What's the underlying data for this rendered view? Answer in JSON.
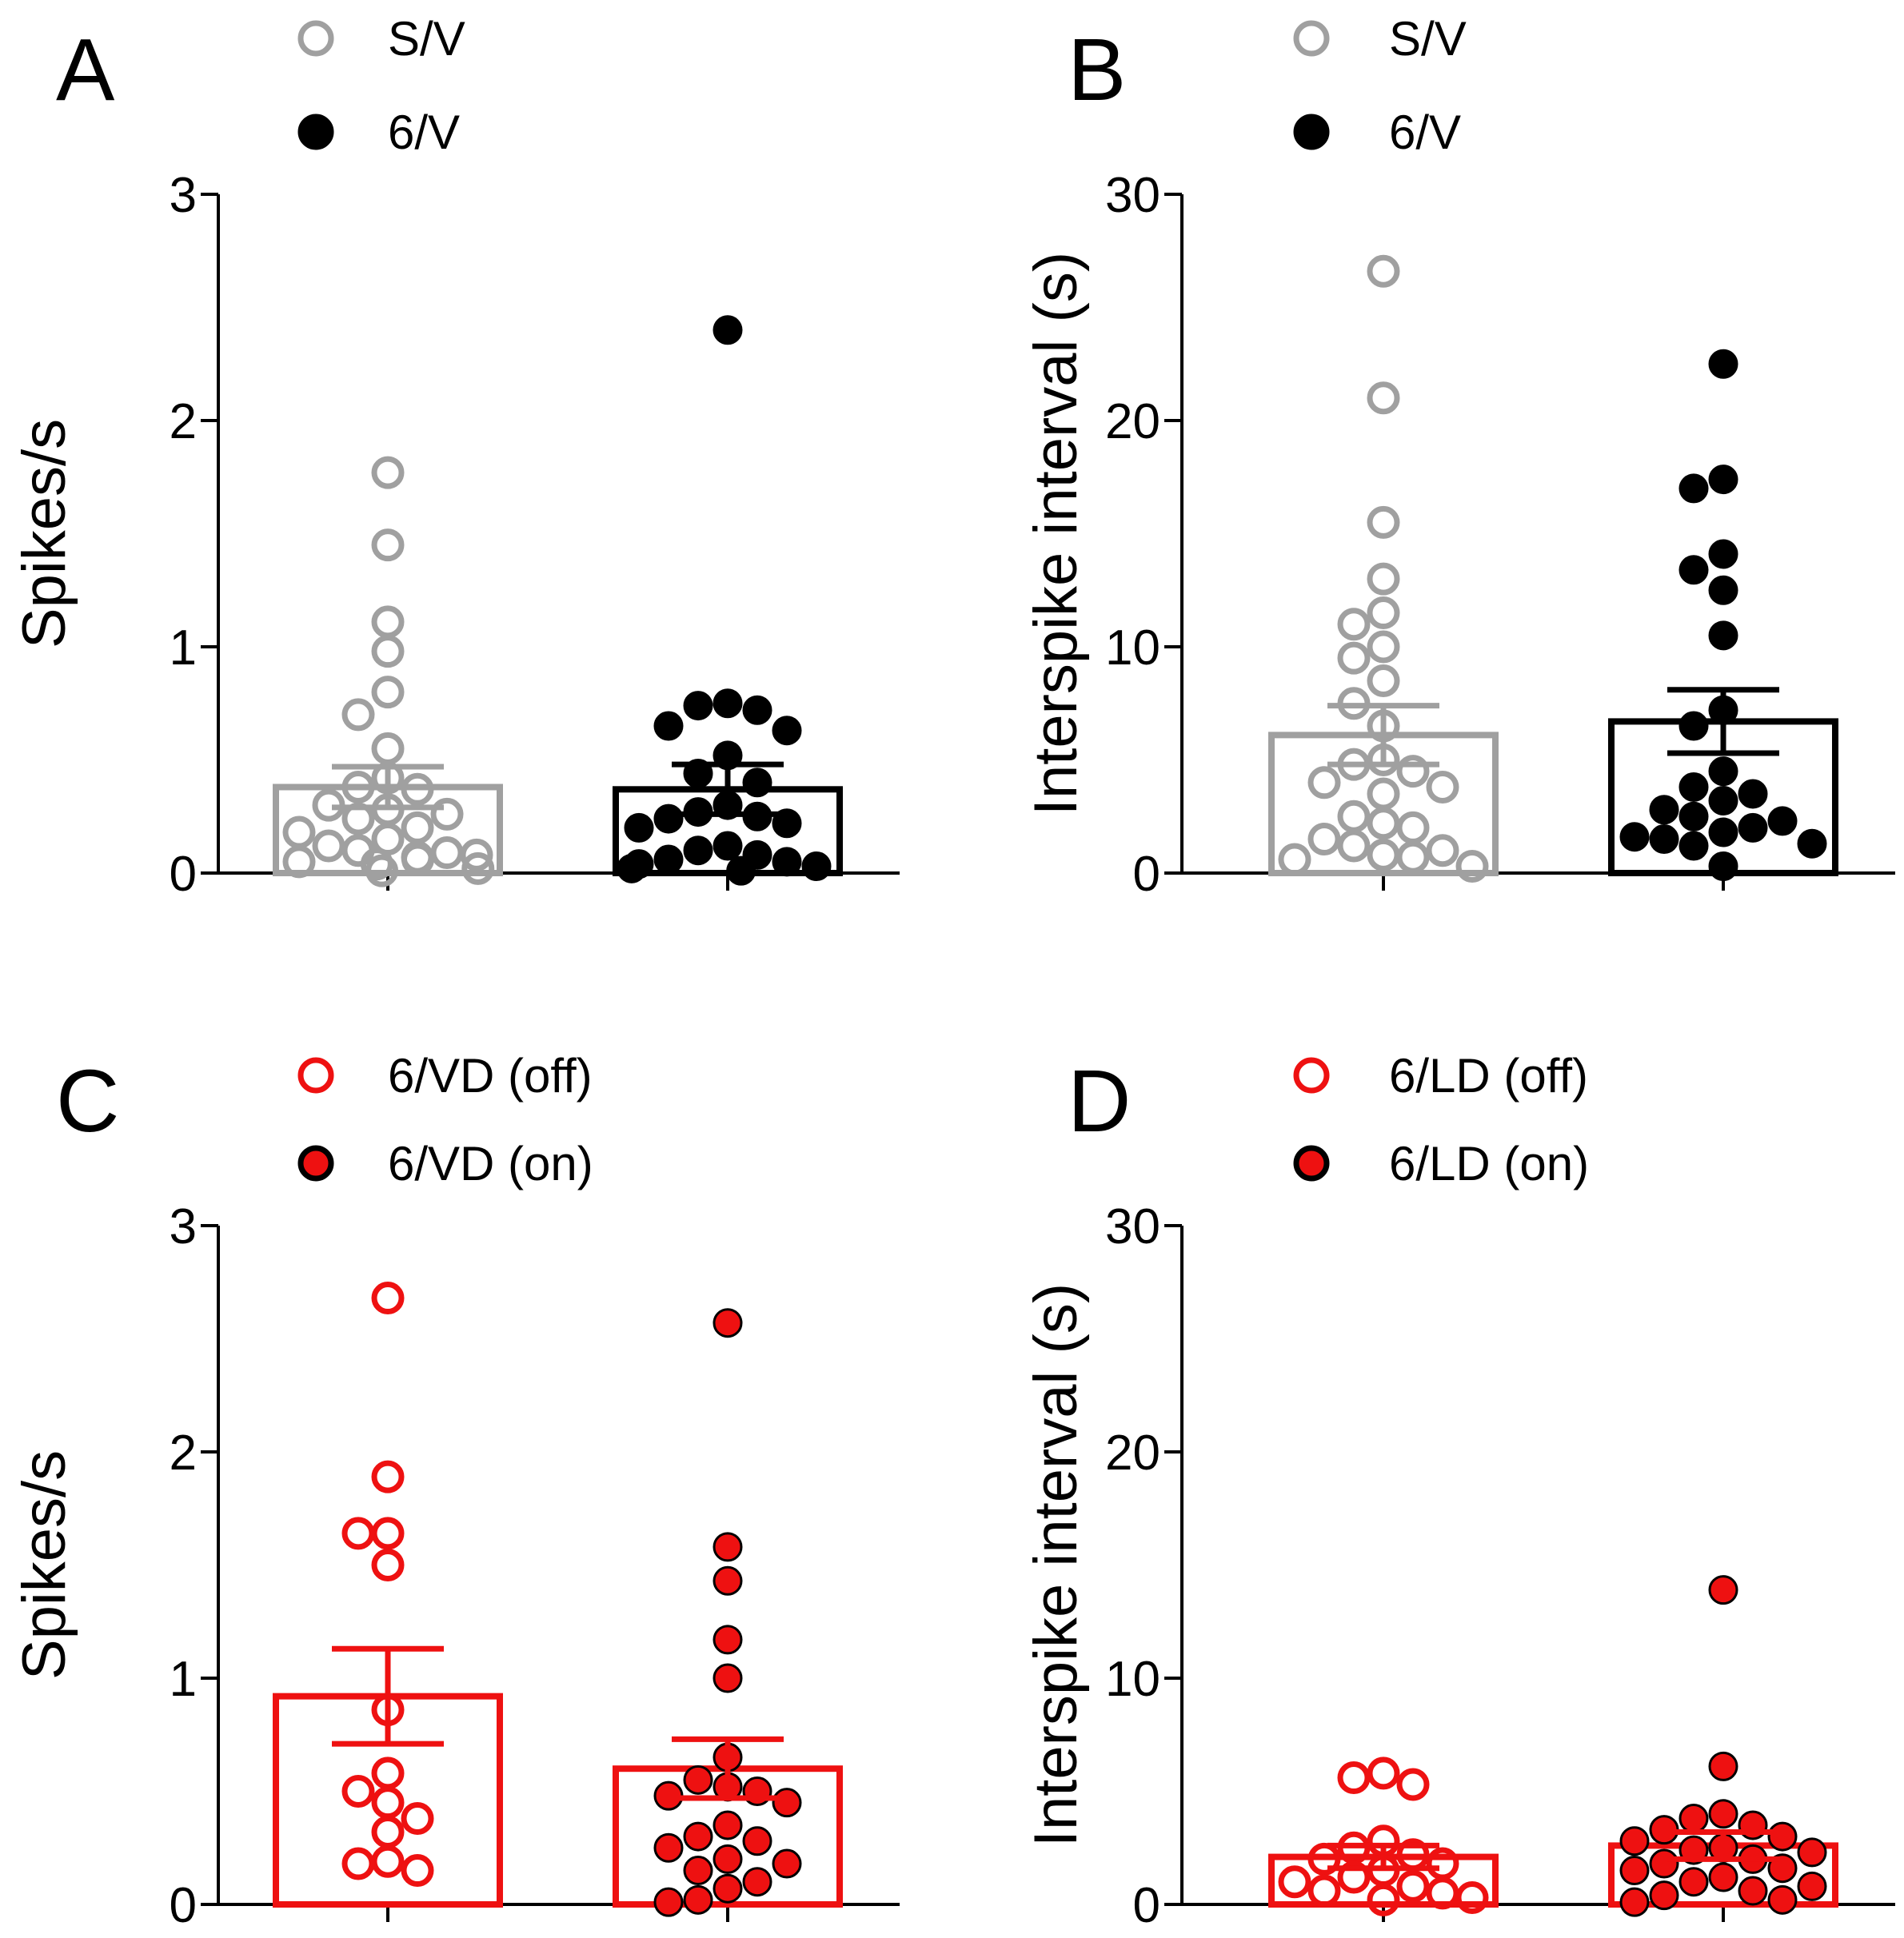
{
  "chart_data": [
    {
      "panel": "A",
      "type": "bar",
      "ylabel": "Spikes/s",
      "ylim": [
        0,
        3
      ],
      "yticks": [
        0,
        1,
        2,
        3
      ],
      "ytick_labels": [
        "0",
        "1",
        "2",
        "3"
      ],
      "legend": [
        {
          "label": "S/V",
          "marker": "open-circle",
          "color": "#a0a0a0"
        },
        {
          "label": "6/V",
          "marker": "filled-circle",
          "color": "#000000"
        }
      ],
      "series": [
        {
          "name": "S/V",
          "color": "#a0a0a0",
          "fill": "none",
          "mean": 0.38,
          "sem": 0.09,
          "points": [
            1.77,
            1.45,
            1.11,
            0.98,
            0.8,
            0.7,
            0.55,
            0.42,
            0.38,
            0.37,
            0.3,
            0.28,
            0.26,
            0.24,
            0.2,
            0.18,
            0.15,
            0.12,
            0.1,
            0.09,
            0.08,
            0.07,
            0.06,
            0.05,
            0.04,
            0.02,
            0.01
          ]
        },
        {
          "name": "6/V",
          "color": "#000000",
          "fill": "#000000",
          "mean": 0.37,
          "sem": 0.11,
          "points": [
            2.4,
            0.75,
            0.74,
            0.72,
            0.65,
            0.63,
            0.52,
            0.44,
            0.4,
            0.3,
            0.27,
            0.25,
            0.24,
            0.22,
            0.2,
            0.12,
            0.1,
            0.08,
            0.06,
            0.05,
            0.04,
            0.03,
            0.02,
            0.01
          ]
        }
      ]
    },
    {
      "panel": "B",
      "type": "bar",
      "ylabel": "Interspike interval (s)",
      "ylim": [
        0,
        30
      ],
      "yticks": [
        0,
        10,
        20,
        30
      ],
      "ytick_labels": [
        "0",
        "10",
        "20",
        "30"
      ],
      "legend": [
        {
          "label": "S/V",
          "marker": "open-circle",
          "color": "#a0a0a0"
        },
        {
          "label": "6/V",
          "marker": "filled-circle",
          "color": "#000000"
        }
      ],
      "series": [
        {
          "name": "S/V",
          "color": "#a0a0a0",
          "fill": "none",
          "mean": 6.1,
          "sem": 1.3,
          "points": [
            26.6,
            21.0,
            15.5,
            13.0,
            11.5,
            11.0,
            10.0,
            9.5,
            8.5,
            7.5,
            6.5,
            5.0,
            4.8,
            4.5,
            4.0,
            3.8,
            3.5,
            2.5,
            2.2,
            2.0,
            1.5,
            1.2,
            1.0,
            0.8,
            0.7,
            0.6,
            0.3
          ]
        },
        {
          "name": "6/V",
          "color": "#000000",
          "fill": "#000000",
          "mean": 6.7,
          "sem": 1.4,
          "points": [
            22.5,
            17.4,
            17.0,
            14.1,
            13.4,
            12.5,
            10.5,
            7.2,
            6.5,
            4.5,
            3.8,
            3.5,
            3.2,
            2.8,
            2.5,
            2.3,
            2.0,
            1.8,
            1.6,
            1.5,
            1.3,
            1.2,
            0.3
          ]
        }
      ]
    },
    {
      "panel": "C",
      "type": "bar",
      "ylabel": "Spikes/s",
      "ylim": [
        0,
        3
      ],
      "yticks": [
        0,
        1,
        2,
        3
      ],
      "ytick_labels": [
        "0",
        "1",
        "2",
        "3"
      ],
      "legend": [
        {
          "label": "6/VD (off)",
          "marker": "open-circle",
          "color": "#ee1111"
        },
        {
          "label": "6/VD (on)",
          "marker": "filled-circle",
          "color": "#ee1111"
        }
      ],
      "series": [
        {
          "name": "6/VD (off)",
          "color": "#ee1111",
          "fill": "none",
          "mean": 0.92,
          "sem": 0.21,
          "points": [
            2.68,
            1.89,
            1.64,
            1.64,
            1.5,
            0.86,
            0.58,
            0.5,
            0.45,
            0.38,
            0.32,
            0.19,
            0.18,
            0.15
          ]
        },
        {
          "name": "6/VD (on)",
          "color": "#ee1111",
          "fill": "#ee1111",
          "mean": 0.6,
          "sem": 0.13,
          "points": [
            2.57,
            1.58,
            1.43,
            1.17,
            1.0,
            0.65,
            0.55,
            0.52,
            0.5,
            0.48,
            0.45,
            0.35,
            0.3,
            0.28,
            0.25,
            0.2,
            0.18,
            0.15,
            0.1,
            0.07,
            0.02,
            0.01
          ]
        }
      ]
    },
    {
      "panel": "D",
      "type": "bar",
      "ylabel": "Interspike interval (s)",
      "ylim": [
        0,
        30
      ],
      "yticks": [
        0,
        10,
        20,
        30
      ],
      "ytick_labels": [
        "0",
        "10",
        "20",
        "30"
      ],
      "legend": [
        {
          "label": "6/LD (off)",
          "marker": "open-circle",
          "color": "#ee1111"
        },
        {
          "label": "6/LD (on)",
          "marker": "filled-circle",
          "color": "#ee1111"
        }
      ],
      "series": [
        {
          "name": "6/LD (off)",
          "color": "#ee1111",
          "fill": "none",
          "mean": 2.1,
          "sem": 0.5,
          "points": [
            5.8,
            5.6,
            5.3,
            2.8,
            2.5,
            2.2,
            2.0,
            1.8,
            1.5,
            1.2,
            1.0,
            0.8,
            0.6,
            0.5,
            0.3,
            0.2
          ]
        },
        {
          "name": "6/LD (on)",
          "color": "#ee1111",
          "fill": "#ee1111",
          "mean": 2.6,
          "sem": 0.6,
          "points": [
            13.9,
            6.1,
            4.0,
            3.8,
            3.5,
            3.3,
            3.0,
            2.8,
            2.5,
            2.4,
            2.3,
            2.0,
            1.8,
            1.6,
            1.5,
            1.2,
            1.0,
            0.8,
            0.6,
            0.4,
            0.2,
            0.1
          ]
        }
      ]
    }
  ]
}
